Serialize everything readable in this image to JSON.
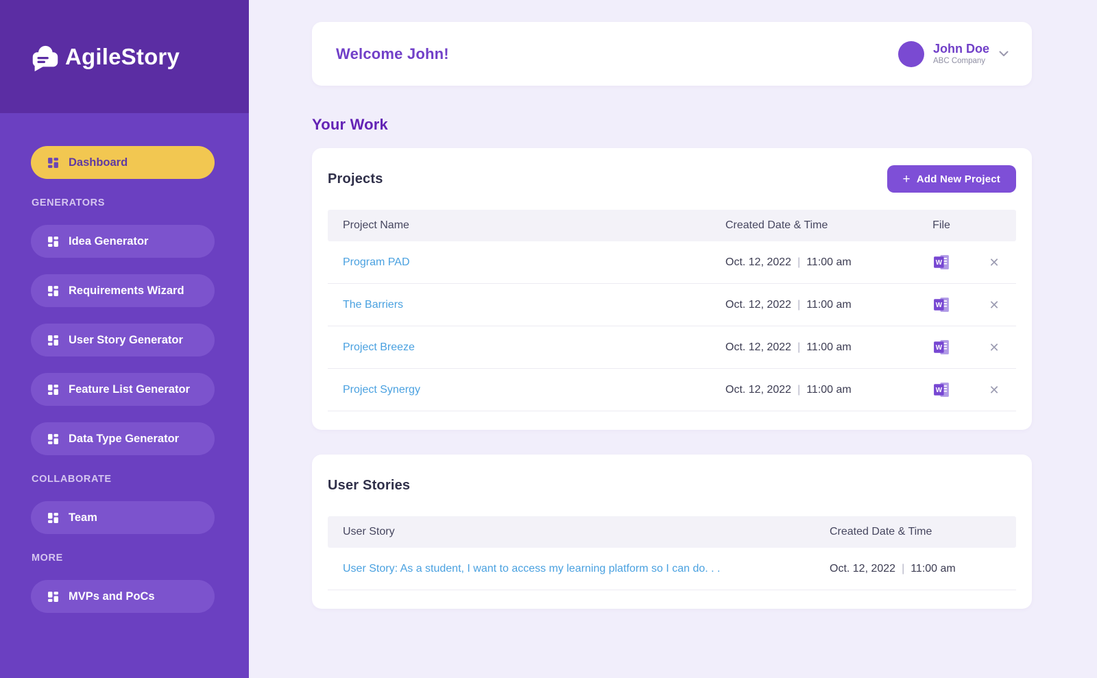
{
  "app": {
    "name": "AgileStory"
  },
  "sidebar": {
    "dashboard_label": "Dashboard",
    "sections": [
      {
        "label": "GENERATORS",
        "items": [
          "Idea Generator",
          "Requirements Wizard",
          "User Story Generator",
          "Feature List Generator",
          "Data Type Generator"
        ]
      },
      {
        "label": "COLLABORATE",
        "items": [
          "Team"
        ]
      },
      {
        "label": "MORE",
        "items": [
          "MVPs and PoCs"
        ]
      }
    ]
  },
  "header": {
    "welcome": "Welcome John!",
    "user": {
      "name": "John Doe",
      "company": "ABC Company"
    }
  },
  "main": {
    "section_title": "Your Work"
  },
  "glyphs": {
    "plus": "+",
    "pipe": "|",
    "close": "✕"
  },
  "projects": {
    "title": "Projects",
    "add_button_label": "Add New Project",
    "columns": {
      "name": "Project Name",
      "created": "Created Date & Time",
      "file": "File"
    },
    "rows": [
      {
        "name": "Program PAD",
        "date": "Oct. 12, 2022",
        "time": "11:00 am",
        "file_icon": "word-doc-icon"
      },
      {
        "name": "The Barriers",
        "date": "Oct. 12, 2022",
        "time": "11:00 am",
        "file_icon": "word-doc-icon"
      },
      {
        "name": "Project Breeze",
        "date": "Oct. 12, 2022",
        "time": "11:00 am",
        "file_icon": "word-doc-icon"
      },
      {
        "name": "Project Synergy",
        "date": "Oct. 12, 2022",
        "time": "11:00 am",
        "file_icon": "word-doc-icon"
      }
    ]
  },
  "user_stories": {
    "title": "User Stories",
    "columns": {
      "story": "User Story",
      "created": "Created Date & Time"
    },
    "rows": [
      {
        "story": "User Story: As a student, I want to access my learning platform so I can do. . .",
        "date": "Oct. 12, 2022",
        "time": "11:00 am"
      }
    ]
  },
  "colors": {
    "sidebar_top": "#5b2da3",
    "sidebar": "#6b40c1",
    "sidebar_item": "#7c53cd",
    "active_yellow": "#f2c751",
    "accent_purple": "#7e4fd7",
    "link_blue": "#4aa1e0",
    "main_bg": "#f1eefb"
  }
}
